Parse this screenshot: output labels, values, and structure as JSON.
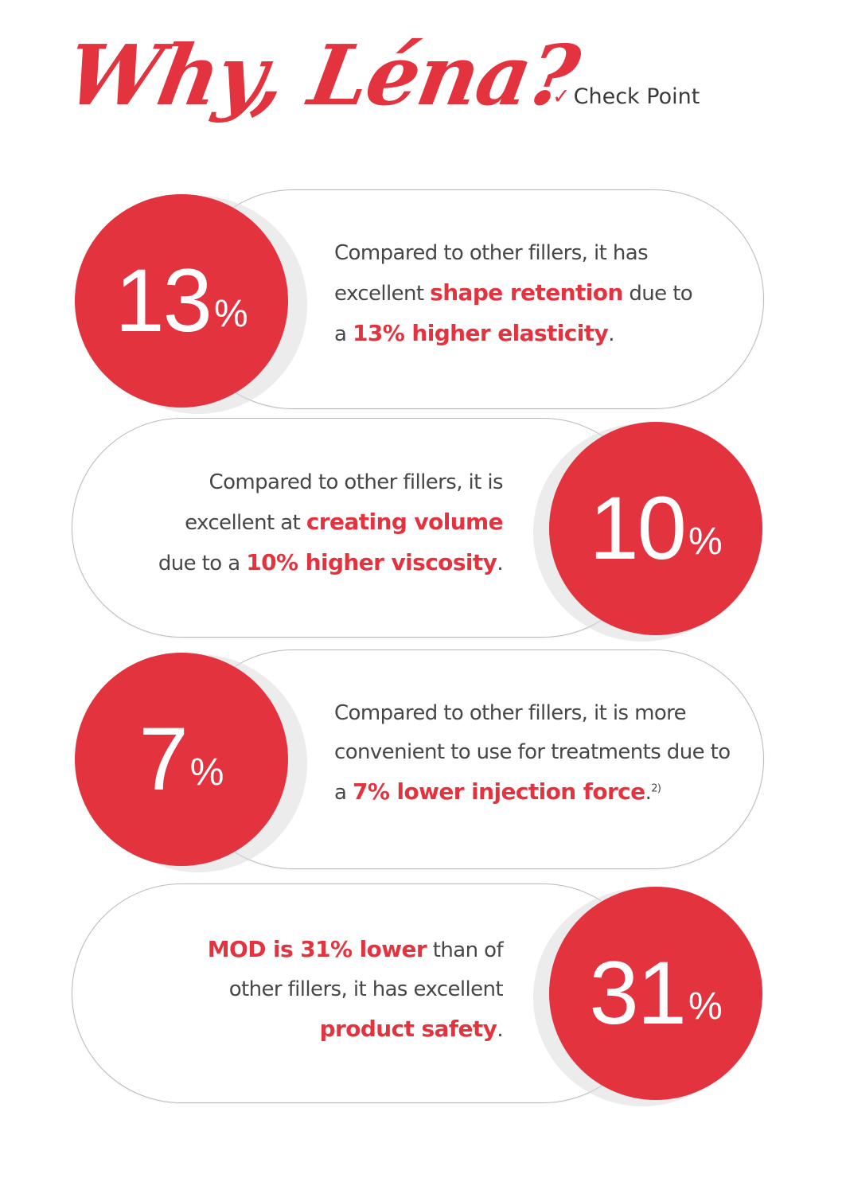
{
  "header": {
    "title": "Why, Léna?",
    "checkpoint_mark": "✓",
    "checkpoint_label": "Check Point"
  },
  "brand": {
    "accent": "#e2333f",
    "text": "#474747",
    "outline": "#b9b9b9"
  },
  "items": [
    {
      "value": "13",
      "unit": "%",
      "l1": "Compared to other fillers, it has",
      "l2_a": "excellent ",
      "l2_b": "shape retention",
      "l2_c": " due to",
      "l3_a": "a ",
      "l3_b": "13% higher elasticity",
      "l3_c": "."
    },
    {
      "value": "10",
      "unit": "%",
      "l1": "Compared to other fillers, it is",
      "l2_a": "excellent at ",
      "l2_b": "creating volume",
      "l3_a": "due to a ",
      "l3_b": "10% higher viscosity",
      "l3_c": "."
    },
    {
      "value": "7",
      "unit": "%",
      "l1": "Compared to other fillers, it is more",
      "l2": "convenient to use for treatments due to",
      "l3_a": "a ",
      "l3_b": "7% lower injection force",
      "l3_c": ".",
      "l3_sup": "2)"
    },
    {
      "value": "31",
      "unit": "%",
      "l1_b": "MOD is 31% lower",
      "l1_c": " than of",
      "l2": "other fillers, it has excellent",
      "l3_b": "product safety",
      "l3_c": "."
    }
  ]
}
